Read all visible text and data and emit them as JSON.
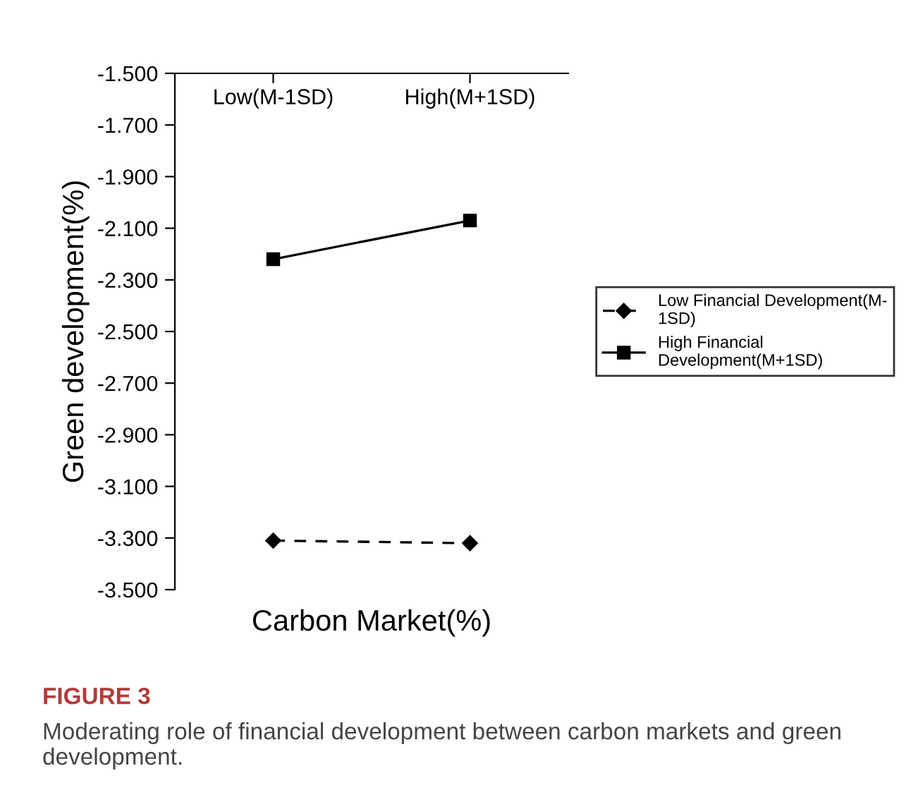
{
  "chart_data": {
    "type": "line",
    "xlabel": "Carbon Market(%)",
    "ylabel": "Green development(%)",
    "categories": [
      "Low(M-1SD)",
      "High(M+1SD)"
    ],
    "series": [
      {
        "name": "Low Financial Development(M-\n1SD)",
        "color": "#000000",
        "values": [
          -3.31,
          -3.32
        ],
        "marker": "diamond",
        "line_style": "dashed"
      },
      {
        "name": "High Financial\nDevelopment(M+1SD)",
        "color": "#000000",
        "values": [
          -2.22,
          -2.07
        ],
        "marker": "square",
        "line_style": "solid"
      }
    ],
    "ylim": [
      -3.5,
      -1.5
    ],
    "yticks": [
      {
        "value": -3.5,
        "label": "-3.500"
      },
      {
        "value": -3.3,
        "label": "-3.300"
      },
      {
        "value": -3.1,
        "label": "-3.100"
      },
      {
        "value": -2.9,
        "label": "-2.900"
      },
      {
        "value": -2.7,
        "label": "-2.700"
      },
      {
        "value": -2.5,
        "label": "-2.500"
      },
      {
        "value": -2.3,
        "label": "-2.300"
      },
      {
        "value": -2.1,
        "label": "-2.100"
      },
      {
        "value": -1.9,
        "label": "-1.900"
      },
      {
        "value": -1.7,
        "label": "-1.700"
      },
      {
        "value": -1.5,
        "label": "-1.500"
      }
    ],
    "grid": false,
    "legend": "right",
    "annotations": [
      "FIGURE 3",
      "Moderating role of financial development between carbon markets and green development."
    ]
  }
}
